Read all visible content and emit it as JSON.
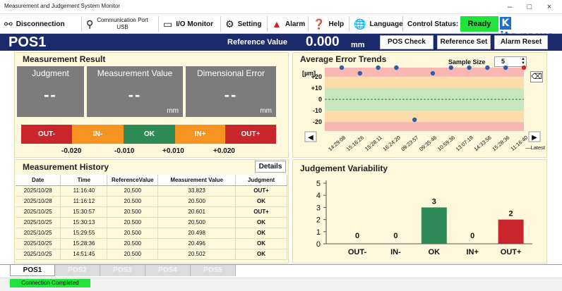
{
  "window": {
    "title": "Measurement and Judgement System Monitor",
    "minimize": "–",
    "maximize": "□",
    "close": "×"
  },
  "toolbar": {
    "disconnection": "Disconnection",
    "comm_port_line1": "Communication Port",
    "comm_port_line2": "USB",
    "io_monitor": "I/O Monitor",
    "setting": "Setting",
    "alarm": "Alarm",
    "help": "Help",
    "language": "Language",
    "control_status_label": "Control Status:",
    "control_status_value": "Ready",
    "brand": "itagawa",
    "brand_initial": "K"
  },
  "header": {
    "pos": "POS1",
    "reference_label": "Reference Value",
    "reference_value": "0.000",
    "reference_unit": "mm",
    "pos_check": "POS Check",
    "reference_set": "Reference Set",
    "alarm_reset": "Alarm Reset"
  },
  "measurement_result": {
    "title": "Measurement Result",
    "judgment_label": "Judgment",
    "judgment_value": "--",
    "measurement_label": "Measurement Value",
    "measurement_value": "--",
    "measurement_unit": "mm",
    "error_label": "Dimensional Error",
    "error_value": "--",
    "error_unit": "mm",
    "bands": [
      {
        "label": "OUT-",
        "color": "#c8262a"
      },
      {
        "label": "IN-",
        "color": "#f79320"
      },
      {
        "label": "OK",
        "color": "#2e8b57"
      },
      {
        "label": "IN+",
        "color": "#f79320"
      },
      {
        "label": "OUT+",
        "color": "#c8262a"
      }
    ],
    "thresholds": [
      "-0.020",
      "-0.010",
      "+0.010",
      "+0.020"
    ]
  },
  "trends": {
    "title": "Average Error Trends",
    "sample_size_label": "Sample Size",
    "sample_size_value": "5",
    "unit": "[µm]",
    "y_ticks": [
      "+20",
      "+10",
      "0",
      "-10",
      "-20"
    ],
    "x_labels": [
      "14:29:08",
      "15:16:26",
      "15:28:11",
      "16:24:20",
      "09:23:57",
      "09:35:46",
      "10:59:36",
      "13:07:19",
      "14:33:56",
      "15:28:36",
      "11:16:40"
    ],
    "latest_label": "—Latest",
    "nav_left": "◀",
    "nav_right": "▶"
  },
  "history": {
    "title": "Measurement History",
    "details": "Details",
    "columns": [
      "Date",
      "Time",
      "ReferenceValue",
      "Measurement Value",
      "Judgment"
    ],
    "rows": [
      [
        "2025/10/28",
        "11:16:40",
        "20.500",
        "33.823",
        "OUT+"
      ],
      [
        "2025/10/28",
        "11:16:12",
        "20.500",
        "20.500",
        "OK"
      ],
      [
        "2025/10/25",
        "15:30:57",
        "20.500",
        "20.601",
        "OUT+"
      ],
      [
        "2025/10/25",
        "15:30:13",
        "20.500",
        "20.500",
        "OK"
      ],
      [
        "2025/10/25",
        "15:29:55",
        "20.500",
        "20.498",
        "OK"
      ],
      [
        "2025/10/25",
        "15:28:36",
        "20.500",
        "20.496",
        "OK"
      ],
      [
        "2025/10/25",
        "14:51:45",
        "20.500",
        "20.502",
        "OK"
      ]
    ]
  },
  "variability": {
    "title": "Judgement Variability"
  },
  "chart_data": [
    {
      "type": "scatter",
      "title": "Average Error Trends",
      "ylabel": "[µm]",
      "y_ticks": [
        20,
        10,
        0,
        -10,
        -20
      ],
      "categories": [
        "14:29:08",
        "15:16:26",
        "15:28:11",
        "16:24:20",
        "09:23:57",
        "09:35:46",
        "10:59:36",
        "13:07:19",
        "14:33:56",
        "15:28:36",
        "11:16:40"
      ],
      "values": [
        28,
        23,
        28,
        28,
        -18,
        23,
        28,
        28,
        28,
        28,
        28
      ],
      "point_colors": [
        "#2b5fa8",
        "#2b5fa8",
        "#2b5fa8",
        "#2b5fa8",
        "#2b5fa8",
        "#2b5fa8",
        "#2b5fa8",
        "#2b5fa8",
        "#2b5fa8",
        "#2b5fa8",
        "#e02020"
      ],
      "ylim": [
        -28,
        28
      ]
    },
    {
      "type": "bar",
      "title": "Judgement Variability",
      "categories": [
        "OUT-",
        "IN-",
        "OK",
        "IN+",
        "OUT+"
      ],
      "values": [
        0,
        0,
        3,
        0,
        2
      ],
      "colors": [
        "#7a7a7a",
        "#7a7a7a",
        "#2e8b57",
        "#7a7a7a",
        "#c8262a"
      ],
      "y_ticks": [
        0,
        1,
        2,
        3,
        4,
        5
      ],
      "ylim": [
        0,
        5
      ]
    }
  ],
  "tabs": [
    "POS1",
    "POS2",
    "POS3",
    "POS4",
    "POS5"
  ],
  "status": {
    "text": "Connection Completed"
  }
}
